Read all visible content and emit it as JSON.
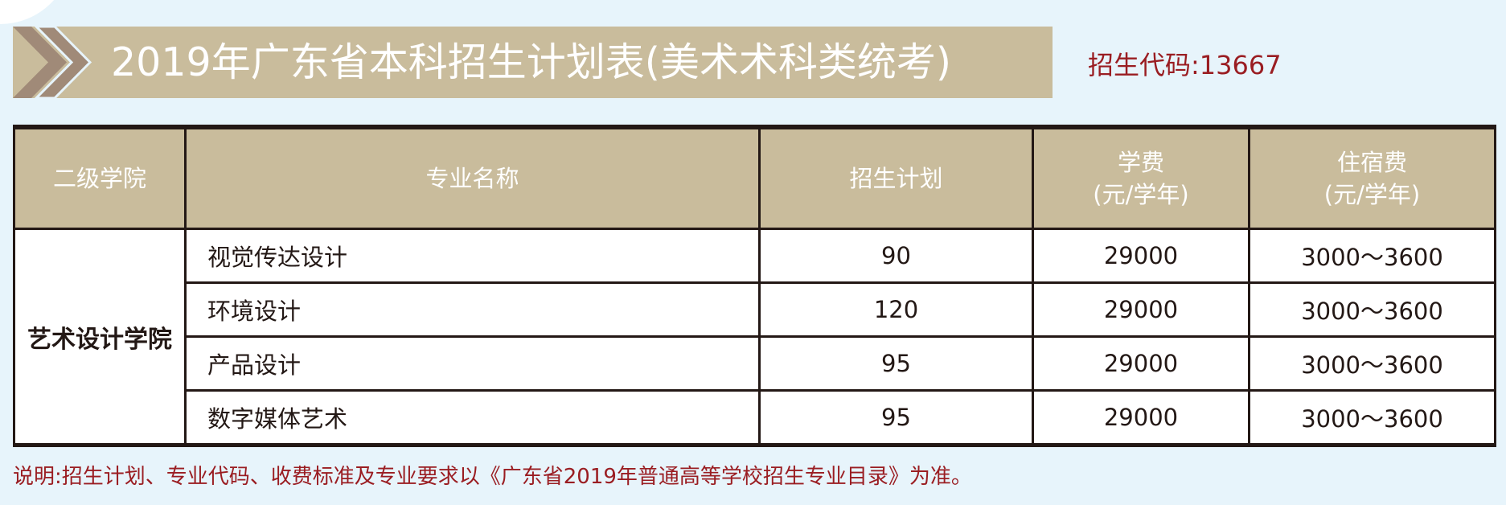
{
  "header": {
    "title": "2019年广东省本科招生计划表(美术术科类统考)",
    "code_label": "招生代码:13667"
  },
  "table": {
    "columns": [
      "二级学院",
      "专业名称",
      "招生计划",
      "学费",
      "(元/学年)",
      "住宿费",
      "(元/学年)"
    ],
    "college": "艺术设计学院",
    "rows": [
      {
        "major": "视觉传达设计",
        "plan": "90",
        "tuition": "29000",
        "dorm": "3000～3600"
      },
      {
        "major": "环境设计",
        "plan": "120",
        "tuition": "29000",
        "dorm": "3000～3600"
      },
      {
        "major": "产品设计",
        "plan": "95",
        "tuition": "29000",
        "dorm": "3000～3600"
      },
      {
        "major": "数字媒体艺术",
        "plan": "95",
        "tuition": "29000",
        "dorm": "3000～3600"
      }
    ]
  },
  "note": "说明:招生计划、专业代码、收费标准及专业要求以《广东省2019年普通高等学校招生专业目录》为准。",
  "colors": {
    "header_bg": "#c9bc9c",
    "accent_red": "#9a1d22",
    "chevron": "#a08a78",
    "background": "#e7f4fb"
  },
  "icons": {
    "banner": "double-chevron-right-icon"
  }
}
